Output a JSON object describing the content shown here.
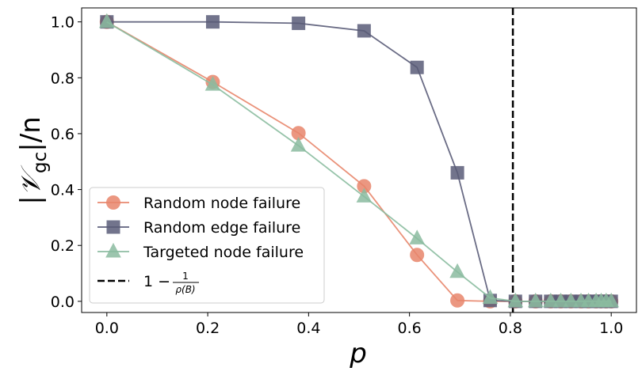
{
  "chart_data": {
    "type": "line",
    "xlabel": "p",
    "ylabel_parts": {
      "bar": "|",
      "symbol": "𝒱",
      "subscript": "gc",
      "suffix": "|/n"
    },
    "xlim": [
      -0.05,
      1.05
    ],
    "ylim": [
      -0.04,
      1.05
    ],
    "xticks": [
      "0.0",
      "0.2",
      "0.4",
      "0.6",
      "0.8",
      "1.0"
    ],
    "yticks": [
      "0.0",
      "0.2",
      "0.4",
      "0.6",
      "0.8",
      "1.0"
    ],
    "grid": false,
    "legend_position": "lower-left",
    "threshold": {
      "x": 0.805,
      "label_parts": {
        "lead": "1 − ",
        "numerator": "1",
        "denominator": "ρ(B)"
      },
      "color": "#000000",
      "style": "dashed"
    },
    "series": [
      {
        "name": "Random node failure",
        "marker": "circle",
        "color": "#e8866c",
        "x": [
          0.0,
          0.21,
          0.38,
          0.51,
          0.615,
          0.695,
          0.76,
          0.81,
          0.85,
          0.88,
          0.9,
          0.92,
          0.94,
          0.955,
          0.97,
          0.98,
          0.99,
          1.0
        ],
        "y": [
          1.0,
          0.785,
          0.602,
          0.412,
          0.166,
          0.003,
          0.0,
          0.0,
          0.0,
          0.0,
          0.0,
          0.0,
          0.0,
          0.0,
          0.0,
          0.0,
          0.0,
          0.0
        ]
      },
      {
        "name": "Random edge failure",
        "marker": "square",
        "color": "#5a5c78",
        "x": [
          0.0,
          0.21,
          0.38,
          0.51,
          0.615,
          0.695,
          0.76,
          0.81,
          0.85,
          0.88,
          0.9,
          0.92,
          0.94,
          0.955,
          0.97,
          0.98,
          0.99,
          1.0
        ],
        "y": [
          1.0,
          1.0,
          0.995,
          0.968,
          0.837,
          0.46,
          0.003,
          0.0,
          0.0,
          0.0,
          0.0,
          0.0,
          0.0,
          0.0,
          0.0,
          0.0,
          0.0,
          0.0
        ]
      },
      {
        "name": "Targeted node failure",
        "marker": "triangle",
        "color": "#8bbca0",
        "x": [
          0.0,
          0.21,
          0.38,
          0.51,
          0.615,
          0.695,
          0.76,
          0.81,
          0.85,
          0.88,
          0.9,
          0.92,
          0.94,
          0.955,
          0.97,
          0.98,
          0.99,
          1.0
        ],
        "y": [
          1.0,
          0.775,
          0.557,
          0.375,
          0.225,
          0.105,
          0.012,
          0.0,
          0.0,
          0.0,
          0.0,
          0.0,
          0.0,
          0.0,
          0.0,
          0.0,
          0.0,
          0.0
        ]
      }
    ]
  }
}
